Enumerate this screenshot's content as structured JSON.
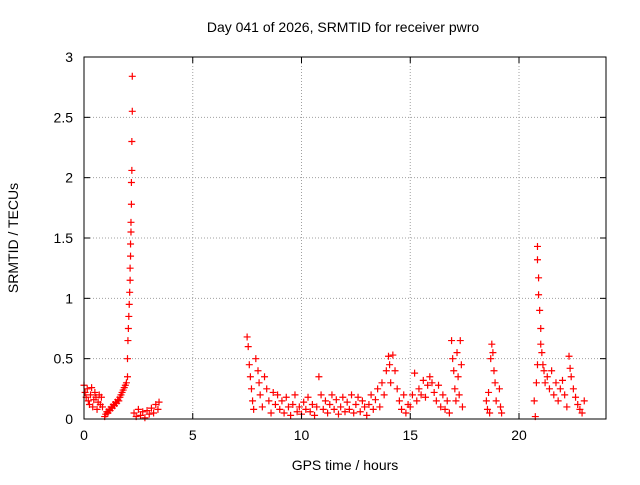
{
  "chart_data": {
    "type": "scatter",
    "title": "Day 041 of 2026, SRMTID for receiver pwro",
    "xlabel": "GPS time / hours",
    "ylabel": "SRMTID / TECUs",
    "xlim": [
      0,
      24
    ],
    "ylim": [
      0,
      3
    ],
    "xticks": [
      0,
      5,
      10,
      15,
      20
    ],
    "yticks": [
      0,
      0.5,
      1,
      1.5,
      2,
      2.5,
      3
    ],
    "ytick_labels": [
      "0",
      "0.5",
      "1",
      "1.5",
      "2",
      "2.5",
      "3"
    ],
    "grid": true,
    "marker": "+",
    "color": "#ff0000",
    "series": [
      {
        "name": "SRMTID",
        "points": [
          [
            0.0,
            0.28
          ],
          [
            0.05,
            0.22
          ],
          [
            0.1,
            0.18
          ],
          [
            0.15,
            0.25
          ],
          [
            0.2,
            0.15
          ],
          [
            0.25,
            0.12
          ],
          [
            0.3,
            0.2
          ],
          [
            0.35,
            0.26
          ],
          [
            0.4,
            0.1
          ],
          [
            0.45,
            0.16
          ],
          [
            0.5,
            0.22
          ],
          [
            0.55,
            0.18
          ],
          [
            0.6,
            0.08
          ],
          [
            0.65,
            0.14
          ],
          [
            0.7,
            0.2
          ],
          [
            0.75,
            0.12
          ],
          [
            0.8,
            0.18
          ],
          [
            0.85,
            0.1
          ],
          [
            0.95,
            0.02
          ],
          [
            1.0,
            0.04
          ],
          [
            1.05,
            0.06
          ],
          [
            1.1,
            0.05
          ],
          [
            1.15,
            0.08
          ],
          [
            1.2,
            0.07
          ],
          [
            1.25,
            0.1
          ],
          [
            1.3,
            0.09
          ],
          [
            1.35,
            0.12
          ],
          [
            1.4,
            0.11
          ],
          [
            1.45,
            0.14
          ],
          [
            1.5,
            0.13
          ],
          [
            1.55,
            0.16
          ],
          [
            1.6,
            0.15
          ],
          [
            1.65,
            0.18
          ],
          [
            1.7,
            0.2
          ],
          [
            1.75,
            0.22
          ],
          [
            1.8,
            0.24
          ],
          [
            1.85,
            0.26
          ],
          [
            1.9,
            0.28
          ],
          [
            1.95,
            0.3
          ],
          [
            2.0,
            0.35
          ],
          [
            2.0,
            0.5
          ],
          [
            2.02,
            0.65
          ],
          [
            2.04,
            0.75
          ],
          [
            2.06,
            0.85
          ],
          [
            2.08,
            0.95
          ],
          [
            2.1,
            1.05
          ],
          [
            2.12,
            1.15
          ],
          [
            2.12,
            1.25
          ],
          [
            2.14,
            1.35
          ],
          [
            2.14,
            1.45
          ],
          [
            2.16,
            1.55
          ],
          [
            2.16,
            1.63
          ],
          [
            2.18,
            1.78
          ],
          [
            2.18,
            1.96
          ],
          [
            2.2,
            2.06
          ],
          [
            2.2,
            2.3
          ],
          [
            2.22,
            2.55
          ],
          [
            2.22,
            2.84
          ],
          [
            2.3,
            0.05
          ],
          [
            2.4,
            0.02
          ],
          [
            2.5,
            0.08
          ],
          [
            2.6,
            0.03
          ],
          [
            2.7,
            0.06
          ],
          [
            2.8,
            0.01
          ],
          [
            2.9,
            0.07
          ],
          [
            3.0,
            0.04
          ],
          [
            3.1,
            0.09
          ],
          [
            3.2,
            0.05
          ],
          [
            3.3,
            0.12
          ],
          [
            3.4,
            0.08
          ],
          [
            3.45,
            0.14
          ],
          [
            7.5,
            0.68
          ],
          [
            7.55,
            0.6
          ],
          [
            7.6,
            0.45
          ],
          [
            7.65,
            0.35
          ],
          [
            7.7,
            0.25
          ],
          [
            7.75,
            0.15
          ],
          [
            7.8,
            0.08
          ],
          [
            7.9,
            0.5
          ],
          [
            8.0,
            0.4
          ],
          [
            8.05,
            0.3
          ],
          [
            8.1,
            0.2
          ],
          [
            8.2,
            0.1
          ],
          [
            8.3,
            0.35
          ],
          [
            8.4,
            0.25
          ],
          [
            8.5,
            0.15
          ],
          [
            8.6,
            0.05
          ],
          [
            8.7,
            0.22
          ],
          [
            8.8,
            0.12
          ],
          [
            8.9,
            0.2
          ],
          [
            9.0,
            0.08
          ],
          [
            9.1,
            0.15
          ],
          [
            9.2,
            0.05
          ],
          [
            9.3,
            0.18
          ],
          [
            9.4,
            0.1
          ],
          [
            9.5,
            0.03
          ],
          [
            9.6,
            0.12
          ],
          [
            9.7,
            0.2
          ],
          [
            9.8,
            0.06
          ],
          [
            9.9,
            0.1
          ],
          [
            10.0,
            0.04
          ],
          [
            10.1,
            0.14
          ],
          [
            10.2,
            0.08
          ],
          [
            10.3,
            0.18
          ],
          [
            10.4,
            0.06
          ],
          [
            10.5,
            0.12
          ],
          [
            10.6,
            0.03
          ],
          [
            10.7,
            0.1
          ],
          [
            10.8,
            0.35
          ],
          [
            10.9,
            0.2
          ],
          [
            11.0,
            0.08
          ],
          [
            11.1,
            0.15
          ],
          [
            11.2,
            0.05
          ],
          [
            11.3,
            0.12
          ],
          [
            11.4,
            0.2
          ],
          [
            11.5,
            0.08
          ],
          [
            11.6,
            0.16
          ],
          [
            11.7,
            0.04
          ],
          [
            11.8,
            0.1
          ],
          [
            11.9,
            0.18
          ],
          [
            12.0,
            0.06
          ],
          [
            12.1,
            0.14
          ],
          [
            12.2,
            0.08
          ],
          [
            12.3,
            0.2
          ],
          [
            12.4,
            0.05
          ],
          [
            12.5,
            0.12
          ],
          [
            12.6,
            0.18
          ],
          [
            12.7,
            0.06
          ],
          [
            12.8,
            0.15
          ],
          [
            12.9,
            0.1
          ],
          [
            13.0,
            0.03
          ],
          [
            13.1,
            0.12
          ],
          [
            13.2,
            0.2
          ],
          [
            13.3,
            0.08
          ],
          [
            13.4,
            0.16
          ],
          [
            13.5,
            0.25
          ],
          [
            13.6,
            0.1
          ],
          [
            13.7,
            0.3
          ],
          [
            13.8,
            0.2
          ],
          [
            13.9,
            0.4
          ],
          [
            14.0,
            0.52
          ],
          [
            14.05,
            0.45
          ],
          [
            14.1,
            0.3
          ],
          [
            14.2,
            0.53
          ],
          [
            14.3,
            0.4
          ],
          [
            14.4,
            0.25
          ],
          [
            14.5,
            0.15
          ],
          [
            14.6,
            0.08
          ],
          [
            14.7,
            0.2
          ],
          [
            14.8,
            0.05
          ],
          [
            14.9,
            0.12
          ],
          [
            15.0,
            0.1
          ],
          [
            15.1,
            0.2
          ],
          [
            15.2,
            0.38
          ],
          [
            15.3,
            0.15
          ],
          [
            15.4,
            0.25
          ],
          [
            15.5,
            0.2
          ],
          [
            15.6,
            0.32
          ],
          [
            15.7,
            0.18
          ],
          [
            15.8,
            0.28
          ],
          [
            15.9,
            0.35
          ],
          [
            16.0,
            0.3
          ],
          [
            16.1,
            0.22
          ],
          [
            16.2,
            0.15
          ],
          [
            16.3,
            0.28
          ],
          [
            16.4,
            0.1
          ],
          [
            16.5,
            0.2
          ],
          [
            16.6,
            0.08
          ],
          [
            16.7,
            0.15
          ],
          [
            16.8,
            0.05
          ],
          [
            16.9,
            0.65
          ],
          [
            16.95,
            0.5
          ],
          [
            17.0,
            0.4
          ],
          [
            17.05,
            0.25
          ],
          [
            17.1,
            0.15
          ],
          [
            17.15,
            0.55
          ],
          [
            17.2,
            0.35
          ],
          [
            17.25,
            0.2
          ],
          [
            17.3,
            0.65
          ],
          [
            17.35,
            0.45
          ],
          [
            17.4,
            0.1
          ],
          [
            18.5,
            0.15
          ],
          [
            18.55,
            0.08
          ],
          [
            18.6,
            0.22
          ],
          [
            18.65,
            0.05
          ],
          [
            18.7,
            0.5
          ],
          [
            18.75,
            0.62
          ],
          [
            18.8,
            0.55
          ],
          [
            18.85,
            0.4
          ],
          [
            18.9,
            0.3
          ],
          [
            18.95,
            0.15
          ],
          [
            19.1,
            0.25
          ],
          [
            19.15,
            0.1
          ],
          [
            19.2,
            0.05
          ],
          [
            20.7,
            0.15
          ],
          [
            20.75,
            0.02
          ],
          [
            20.8,
            0.3
          ],
          [
            20.85,
            0.45
          ],
          [
            20.85,
            1.32
          ],
          [
            20.85,
            1.43
          ],
          [
            20.9,
            1.17
          ],
          [
            20.9,
            1.03
          ],
          [
            20.95,
            0.9
          ],
          [
            21.0,
            0.75
          ],
          [
            21.0,
            0.62
          ],
          [
            21.05,
            0.55
          ],
          [
            21.1,
            0.45
          ],
          [
            21.15,
            0.4
          ],
          [
            21.2,
            0.3
          ],
          [
            21.3,
            0.35
          ],
          [
            21.4,
            0.25
          ],
          [
            21.5,
            0.4
          ],
          [
            21.6,
            0.2
          ],
          [
            21.7,
            0.3
          ],
          [
            21.8,
            0.15
          ],
          [
            21.9,
            0.25
          ],
          [
            22.0,
            0.32
          ],
          [
            22.1,
            0.2
          ],
          [
            22.2,
            0.1
          ],
          [
            22.3,
            0.52
          ],
          [
            22.35,
            0.42
          ],
          [
            22.4,
            0.35
          ],
          [
            22.5,
            0.25
          ],
          [
            22.6,
            0.18
          ],
          [
            22.7,
            0.12
          ],
          [
            22.8,
            0.08
          ],
          [
            22.9,
            0.05
          ],
          [
            23.0,
            0.15
          ]
        ]
      }
    ]
  }
}
